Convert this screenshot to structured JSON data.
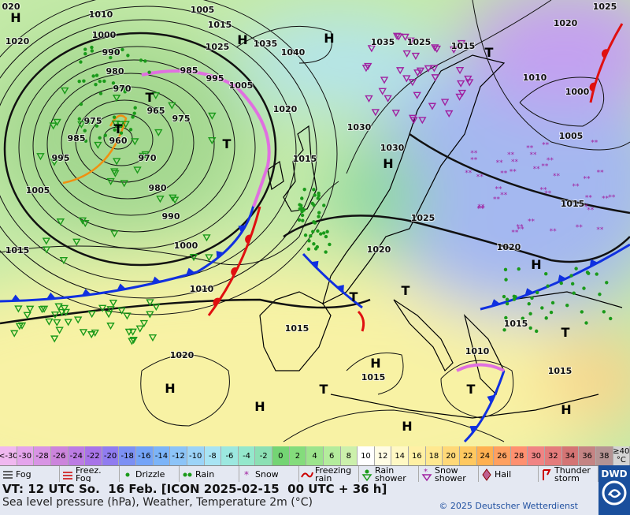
{
  "map": {
    "pressure_labels": [
      "1010",
      "1005",
      "1025",
      "020",
      "1000",
      "1020",
      "990",
      "980",
      "970",
      "965",
      "975",
      "975",
      "960",
      "985",
      "995",
      "970",
      "980",
      "1005",
      "990",
      "1000",
      "1015",
      "1010",
      "1015",
      "1025",
      "985",
      "995",
      "1005",
      "1035",
      "1040",
      "1020",
      "1030",
      "1015",
      "1030",
      "1035",
      "1025",
      "1015",
      "1020",
      "1010",
      "1000",
      "1005",
      "1015",
      "1025",
      "1020",
      "1020",
      "1015",
      "1015",
      "1010",
      "1015",
      "1015",
      "1020"
    ],
    "centers": [
      "H",
      "H",
      "H",
      "T",
      "T",
      "T",
      "H",
      "T",
      "H",
      "T",
      "T",
      "T",
      "H",
      "H",
      "H",
      "T",
      "T",
      "H",
      "H"
    ]
  },
  "legend": {
    "temperature_labels": [
      "<-30",
      -30,
      -28,
      -26,
      -24,
      -22,
      -20,
      -18,
      -16,
      -14,
      -12,
      -10,
      -8,
      -6,
      -4,
      -2,
      0,
      2,
      4,
      6,
      8,
      10,
      12,
      14,
      16,
      18,
      20,
      22,
      24,
      26,
      28,
      30,
      32,
      34,
      36,
      38,
      "≥40 °C"
    ],
    "temperature_colors": [
      "#f0b8f0",
      "#e4a4ec",
      "#d894e4",
      "#cc84dc",
      "#bc7ce4",
      "#a874e8",
      "#907cf0",
      "#7c90f4",
      "#74a4f8",
      "#7cb4f8",
      "#8cc4f8",
      "#9cd4f8",
      "#a8e4f4",
      "#9ce8e0",
      "#94e8cc",
      "#8ce0b4",
      "#74d474",
      "#84dc7c",
      "#9ce48c",
      "#b4ec9c",
      "#ccf0ac",
      "#ffffff",
      "#fffce4",
      "#fff8c4",
      "#fff0a4",
      "#ffe890",
      "#ffd878",
      "#ffc860",
      "#ffb050",
      "#ffa060",
      "#ff9070",
      "#f08484",
      "#e47c7c",
      "#d47474",
      "#c48484",
      "#b49494",
      "#d4d4d4"
    ],
    "symbols": [
      "Fog",
      "Freez. Fog",
      "Drizzle",
      "Rain",
      "Snow",
      "Freezing rain",
      "Rain shower",
      "Snow shower",
      "Hail",
      "Thunder storm"
    ]
  },
  "footer": {
    "valid_time": "VT: 12 UTC So.  16 Feb. [ICON 2025-02-15  00 UTC + 36 h]",
    "description": "Sea level pressure (hPa), Weather, Temperature 2m (°C)",
    "copyright": "© 2025 Deutscher Wetterdienst",
    "logo": "DWD"
  }
}
